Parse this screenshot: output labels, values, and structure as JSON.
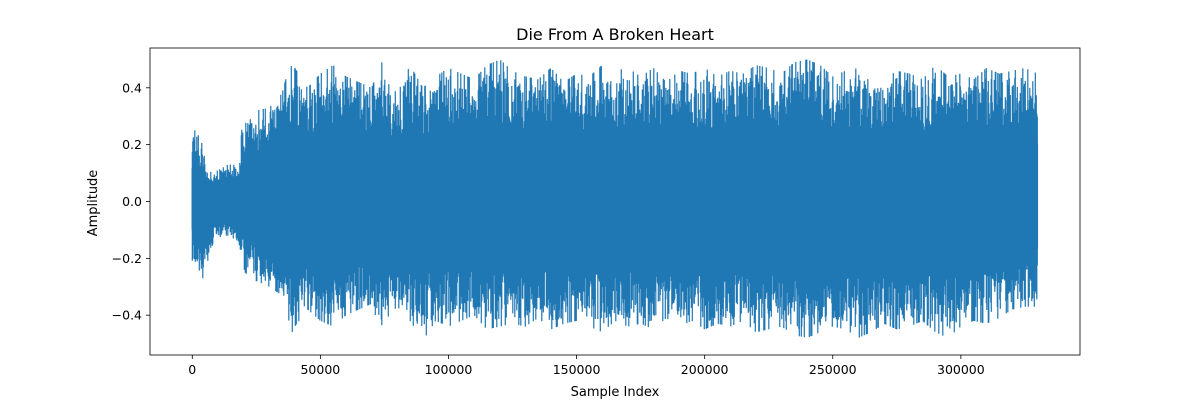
{
  "chart_data": {
    "type": "line",
    "title": "Die From A Broken Heart",
    "xlabel": "Sample Index",
    "ylabel": "Amplitude",
    "xlim": [
      -16500,
      346500
    ],
    "ylim": [
      -0.54,
      0.54
    ],
    "xticks": [
      0,
      50000,
      100000,
      150000,
      200000,
      250000,
      300000
    ],
    "xtick_labels": [
      "0",
      "50000",
      "100000",
      "150000",
      "200000",
      "250000",
      "300000"
    ],
    "yticks": [
      -0.4,
      -0.2,
      0.0,
      0.2,
      0.4
    ],
    "ytick_labels": [
      "−0.4",
      "−0.2",
      "0.0",
      "0.2",
      "0.4"
    ],
    "grid": false,
    "series": [
      {
        "color": "#1f77b4",
        "x_range": [
          0,
          330000
        ],
        "envelope": {
          "x": [
            0,
            2000,
            4000,
            6000,
            8000,
            10000,
            12000,
            14000,
            16000,
            18000,
            19500,
            20500,
            25000,
            30000,
            35000,
            38000,
            40000,
            45000,
            50000,
            55000,
            60000,
            65000,
            70000,
            74000,
            75000,
            80000,
            85000,
            90000,
            95000,
            100000,
            105000,
            110000,
            115000,
            120000,
            125000,
            130000,
            135000,
            140000,
            145000,
            150000,
            155000,
            160000,
            165000,
            170000,
            175000,
            180000,
            185000,
            190000,
            195000,
            200000,
            205000,
            210000,
            215000,
            220000,
            225000,
            230000,
            235000,
            240000,
            245000,
            250000,
            255000,
            260000,
            265000,
            270000,
            275000,
            280000,
            285000,
            290000,
            295000,
            300000,
            305000,
            310000,
            315000,
            320000,
            325000,
            330000
          ],
          "max": [
            0.26,
            0.24,
            0.2,
            0.11,
            0.1,
            0.11,
            0.12,
            0.13,
            0.13,
            0.12,
            0.27,
            0.3,
            0.32,
            0.33,
            0.38,
            0.48,
            0.47,
            0.4,
            0.45,
            0.48,
            0.44,
            0.42,
            0.4,
            0.49,
            0.43,
            0.38,
            0.48,
            0.4,
            0.44,
            0.47,
            0.45,
            0.43,
            0.48,
            0.5,
            0.46,
            0.44,
            0.43,
            0.47,
            0.42,
            0.45,
            0.44,
            0.48,
            0.46,
            0.47,
            0.44,
            0.47,
            0.42,
            0.46,
            0.45,
            0.47,
            0.44,
            0.46,
            0.45,
            0.48,
            0.47,
            0.45,
            0.49,
            0.5,
            0.48,
            0.44,
            0.46,
            0.47,
            0.45,
            0.43,
            0.46,
            0.45,
            0.43,
            0.48,
            0.44,
            0.45,
            0.43,
            0.47,
            0.45,
            0.46,
            0.47,
            0.45
          ],
          "min": [
            -0.22,
            -0.24,
            -0.3,
            -0.21,
            -0.15,
            -0.13,
            -0.12,
            -0.12,
            -0.13,
            -0.14,
            -0.2,
            -0.25,
            -0.28,
            -0.3,
            -0.33,
            -0.48,
            -0.44,
            -0.38,
            -0.42,
            -0.44,
            -0.4,
            -0.38,
            -0.36,
            -0.47,
            -0.42,
            -0.37,
            -0.42,
            -0.49,
            -0.42,
            -0.44,
            -0.42,
            -0.4,
            -0.45,
            -0.44,
            -0.43,
            -0.44,
            -0.41,
            -0.45,
            -0.43,
            -0.42,
            -0.44,
            -0.46,
            -0.42,
            -0.44,
            -0.43,
            -0.45,
            -0.41,
            -0.44,
            -0.42,
            -0.45,
            -0.43,
            -0.44,
            -0.42,
            -0.46,
            -0.45,
            -0.44,
            -0.47,
            -0.48,
            -0.46,
            -0.44,
            -0.45,
            -0.48,
            -0.46,
            -0.43,
            -0.45,
            -0.44,
            -0.42,
            -0.46,
            -0.48,
            -0.44,
            -0.42,
            -0.43,
            -0.41,
            -0.38,
            -0.37,
            -0.37
          ]
        }
      }
    ]
  }
}
